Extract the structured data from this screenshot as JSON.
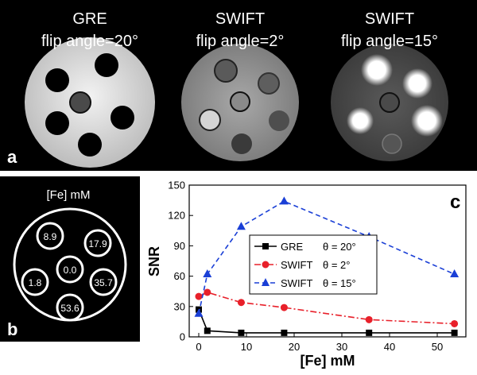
{
  "panel_a": {
    "letter": "a",
    "images": [
      {
        "title": "GRE",
        "subtitle": "flip angle=20°"
      },
      {
        "title": "SWIFT",
        "subtitle": "flip angle=2°"
      },
      {
        "title": "SWIFT",
        "subtitle": "flip angle=15°"
      }
    ]
  },
  "panel_b": {
    "letter": "b",
    "title": "[Fe] mM",
    "wells": [
      "8.9",
      "17.9",
      "0.0",
      "1.8",
      "35.7",
      "53.6"
    ]
  },
  "chart_data": {
    "type": "line",
    "panel_letter": "c",
    "xlabel": "[Fe] mM",
    "ylabel": "SNR",
    "xlim": [
      -2,
      56
    ],
    "ylim": [
      0,
      150
    ],
    "xticks": [
      0,
      10,
      20,
      30,
      40,
      50
    ],
    "yticks": [
      0,
      30,
      60,
      90,
      120,
      150
    ],
    "legend_position": "center-left",
    "x": [
      0.0,
      1.8,
      8.9,
      17.9,
      35.7,
      53.6
    ],
    "series": [
      {
        "name": "GRE",
        "param": "θ = 20°",
        "color": "#000000",
        "marker": "square",
        "dash": "solid",
        "values": [
          27,
          6,
          4,
          4,
          4,
          4
        ]
      },
      {
        "name": "SWIFT",
        "param": "θ = 2°",
        "color": "#e8202a",
        "marker": "circle",
        "dash": "dashdot",
        "values": [
          40,
          44,
          34,
          29,
          17,
          13
        ]
      },
      {
        "name": "SWIFT",
        "param": "θ = 15°",
        "color": "#1a3fd6",
        "marker": "triangle",
        "dash": "dashed",
        "values": [
          23,
          62,
          109,
          134,
          99,
          62
        ]
      }
    ]
  }
}
